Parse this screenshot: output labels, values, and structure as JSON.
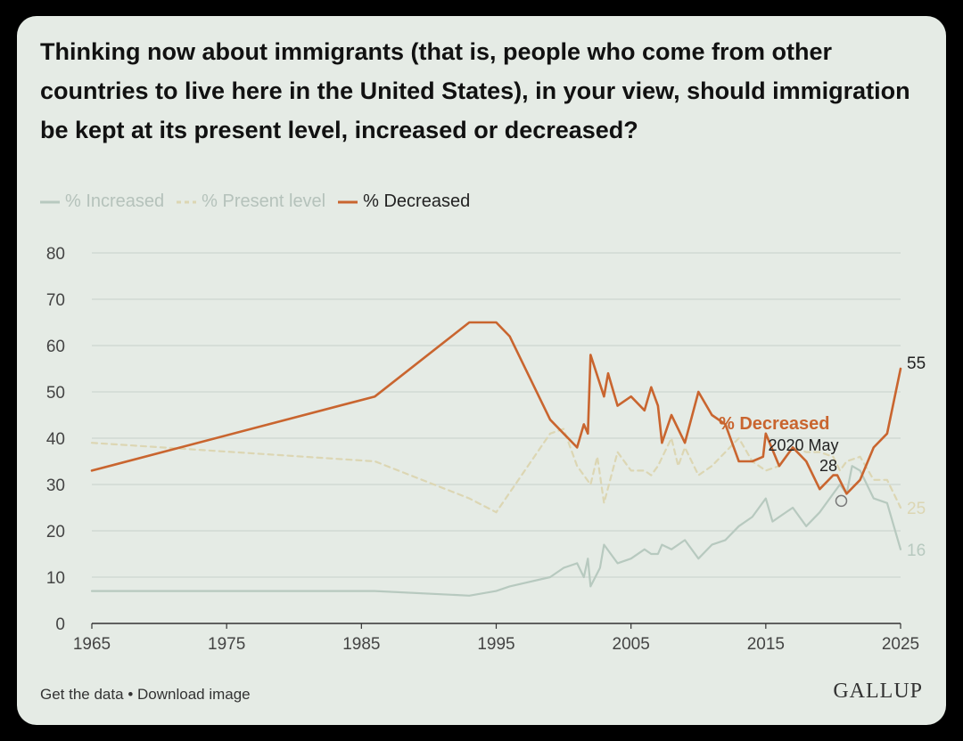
{
  "footer": {
    "get_data": "Get the data",
    "separator": "•",
    "download": "Download image"
  },
  "brand": "GALLUP",
  "colors": {
    "increased": "#b7c9bf",
    "present": "#dcd6b3",
    "decreased": "#c9652f",
    "grid": "#d2d9d3",
    "axis": "#333333",
    "tick_text": "#444444"
  },
  "chart_data": {
    "type": "line",
    "title": "Thinking now about immigrants (that is, people who come from other countries to live here in the United States), in your view, should immigration be kept at its present level, increased or decreased?",
    "xlim": [
      1965,
      2025
    ],
    "ylim": [
      0,
      80
    ],
    "xticks": [
      1965,
      1975,
      1985,
      1995,
      2005,
      2015,
      2025
    ],
    "yticks": [
      0,
      10,
      20,
      30,
      40,
      50,
      60,
      70,
      80
    ],
    "grid": true,
    "legend_position": "top-left",
    "series": [
      {
        "name": "% Increased",
        "style": "solid",
        "color": "#b7c9bf",
        "end_label": "16",
        "points": [
          [
            1965,
            7
          ],
          [
            1986,
            7
          ],
          [
            1993,
            6
          ],
          [
            1995,
            7
          ],
          [
            1996,
            8
          ],
          [
            1999,
            10
          ],
          [
            2000,
            12
          ],
          [
            2001,
            13
          ],
          [
            2001.5,
            10
          ],
          [
            2001.8,
            14
          ],
          [
            2002,
            8
          ],
          [
            2002.7,
            12
          ],
          [
            2003,
            17
          ],
          [
            2004,
            13
          ],
          [
            2005,
            14
          ],
          [
            2006,
            16
          ],
          [
            2006.5,
            15
          ],
          [
            2007,
            15
          ],
          [
            2007.3,
            17
          ],
          [
            2008,
            16
          ],
          [
            2009,
            18
          ],
          [
            2010,
            14
          ],
          [
            2011,
            17
          ],
          [
            2012,
            18
          ],
          [
            2013,
            21
          ],
          [
            2014,
            23
          ],
          [
            2015,
            27
          ],
          [
            2015.5,
            22
          ],
          [
            2016,
            23
          ],
          [
            2017,
            25
          ],
          [
            2018,
            21
          ],
          [
            2019,
            24
          ],
          [
            2020,
            28
          ],
          [
            2020.5,
            30
          ],
          [
            2021,
            28
          ],
          [
            2021.4,
            34
          ],
          [
            2022,
            33
          ],
          [
            2023,
            27
          ],
          [
            2024,
            26
          ],
          [
            2025,
            16
          ]
        ]
      },
      {
        "name": "% Present level",
        "style": "dashed",
        "color": "#dcd6b3",
        "end_label": "25",
        "points": [
          [
            1965,
            39
          ],
          [
            1986,
            35
          ],
          [
            1993,
            27
          ],
          [
            1995,
            24
          ],
          [
            1999,
            41
          ],
          [
            2000,
            42
          ],
          [
            2001,
            34
          ],
          [
            2002,
            30
          ],
          [
            2002.5,
            36
          ],
          [
            2003,
            26
          ],
          [
            2004,
            37
          ],
          [
            2005,
            33
          ],
          [
            2006,
            33
          ],
          [
            2006.5,
            32
          ],
          [
            2007,
            34
          ],
          [
            2008,
            40
          ],
          [
            2008.5,
            34
          ],
          [
            2009,
            38
          ],
          [
            2010,
            32
          ],
          [
            2011,
            34
          ],
          [
            2012,
            37
          ],
          [
            2013,
            40
          ],
          [
            2014,
            35
          ],
          [
            2015,
            33
          ],
          [
            2016,
            34
          ],
          [
            2017,
            38
          ],
          [
            2018,
            37
          ],
          [
            2019,
            37
          ],
          [
            2020,
            36
          ],
          [
            2020.5,
            33
          ],
          [
            2021,
            35
          ],
          [
            2022,
            36
          ],
          [
            2023,
            31
          ],
          [
            2024,
            31
          ],
          [
            2025,
            25
          ]
        ]
      },
      {
        "name": "% Decreased",
        "style": "solid",
        "color": "#c9652f",
        "end_label": "55",
        "inline_label": "% Decreased",
        "points": [
          [
            1965,
            33
          ],
          [
            1986,
            49
          ],
          [
            1993,
            65
          ],
          [
            1995,
            65
          ],
          [
            1996,
            62
          ],
          [
            1999,
            44
          ],
          [
            2001,
            38
          ],
          [
            2001.5,
            43
          ],
          [
            2001.8,
            41
          ],
          [
            2002,
            58
          ],
          [
            2003,
            49
          ],
          [
            2003.3,
            54
          ],
          [
            2004,
            47
          ],
          [
            2005,
            49
          ],
          [
            2006,
            46
          ],
          [
            2006.5,
            51
          ],
          [
            2007,
            47
          ],
          [
            2007.3,
            39
          ],
          [
            2008,
            45
          ],
          [
            2009,
            39
          ],
          [
            2010,
            50
          ],
          [
            2011,
            45
          ],
          [
            2012,
            43
          ],
          [
            2013,
            35
          ],
          [
            2014,
            35
          ],
          [
            2014.8,
            36
          ],
          [
            2015,
            41
          ],
          [
            2016,
            34
          ],
          [
            2017,
            38
          ],
          [
            2018,
            35
          ],
          [
            2019,
            29
          ],
          [
            2020,
            32
          ],
          [
            2020.3,
            32
          ],
          [
            2021,
            28
          ],
          [
            2022,
            31
          ],
          [
            2023,
            38
          ],
          [
            2024,
            41
          ],
          [
            2025,
            55
          ]
        ]
      }
    ],
    "annotation": {
      "label_line1": "2020 May",
      "label_line2": "28",
      "x": 2020.6,
      "y": 28
    }
  }
}
